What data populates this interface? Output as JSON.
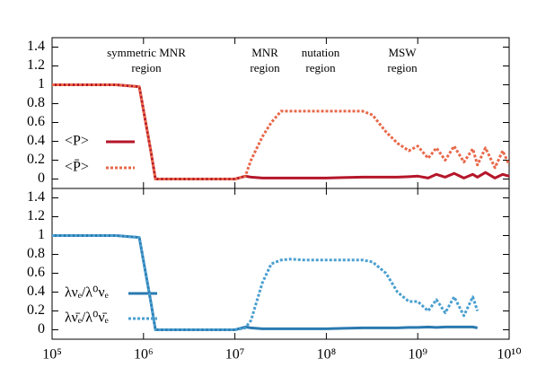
{
  "chart_data": [
    {
      "type": "line",
      "xscale": "log",
      "show_xtick_labels": false,
      "xlim": [
        100000,
        10000000000
      ],
      "ylim": [
        -0.1,
        1.5
      ],
      "xticks": [
        100000,
        1000000,
        10000000,
        100000000,
        1000000000,
        10000000000
      ],
      "yticks": [
        0,
        0.2,
        0.4,
        0.6,
        0.8,
        1,
        1.2,
        1.4
      ],
      "annotations": [
        [
          "symmetric MNR",
          "region"
        ],
        [
          "MNR",
          "region"
        ],
        [
          "nutation",
          "region"
        ],
        [
          "MSW",
          "region"
        ]
      ],
      "x": [
        100000,
        500000,
        900000,
        1200000,
        1350000,
        3000000,
        10000000,
        13000000,
        15000000,
        20000000,
        25000000,
        32000000,
        40000000,
        60000000,
        100000000,
        150000000,
        250000000,
        320000000,
        450000000,
        600000000,
        800000000,
        1000000000,
        1300000000,
        1600000000,
        2000000000,
        2500000000,
        3200000000,
        4000000000,
        4500000000,
        5500000000,
        7000000000,
        8500000000,
        10000000000
      ],
      "series": [
        {
          "name": "<P>",
          "color": "#b5162a",
          "dash": false,
          "values": [
            1,
            1,
            0.98,
            0.3,
            0,
            0,
            0,
            0.03,
            0.02,
            0.01,
            0.01,
            0.01,
            0.01,
            0.01,
            0.01,
            0.015,
            0.02,
            0.02,
            0.02,
            0.02,
            0.025,
            0.03,
            0.01,
            0.05,
            0.02,
            0.06,
            0.01,
            0.05,
            0.02,
            0.07,
            0.01,
            0.05,
            0.03
          ]
        },
        {
          "name": "<P̄>",
          "color": "#e8684a",
          "dash": true,
          "values": [
            1,
            1,
            0.98,
            0.3,
            0,
            0,
            0,
            0.03,
            0.2,
            0.45,
            0.6,
            0.72,
            0.72,
            0.72,
            0.72,
            0.72,
            0.72,
            0.68,
            0.5,
            0.38,
            0.3,
            0.35,
            0.22,
            0.33,
            0.2,
            0.35,
            0.18,
            0.32,
            0.15,
            0.33,
            0.12,
            0.3,
            0.15
          ]
        }
      ]
    },
    {
      "type": "line",
      "xscale": "log",
      "show_xtick_labels": true,
      "xlim": [
        100000,
        10000000000
      ],
      "ylim": [
        -0.1,
        1.5
      ],
      "xticks": [
        {
          "value": 100000,
          "label": "10⁵"
        },
        {
          "value": 1000000,
          "label": "10⁶"
        },
        {
          "value": 10000000,
          "label": "10⁷"
        },
        {
          "value": 100000000,
          "label": "10⁸"
        },
        {
          "value": 1000000000,
          "label": "10⁹"
        },
        {
          "value": 10000000000,
          "label": "10¹⁰"
        }
      ],
      "yticks": [
        0,
        0.2,
        0.4,
        0.6,
        0.8,
        1,
        1.2,
        1.4
      ],
      "x": [
        100000,
        500000,
        900000,
        1200000,
        1350000,
        3000000,
        10000000,
        13000000,
        15000000,
        20000000,
        25000000,
        32000000,
        40000000,
        60000000,
        100000000,
        150000000,
        250000000,
        320000000,
        450000000,
        600000000,
        800000000,
        1000000000,
        1300000000,
        1600000000,
        2000000000,
        2500000000,
        3200000000,
        4000000000,
        4500000000,
        5500000000,
        7000000000,
        8500000000,
        10000000000
      ],
      "series": [
        {
          "name": "λνₑ/λ⁰νₑ",
          "color": "#2a7ab0",
          "dash": false,
          "values": [
            1,
            1,
            0.98,
            0.3,
            0,
            0,
            0,
            0.03,
            0.02,
            0.01,
            0.01,
            0.01,
            0.01,
            0.01,
            0.01,
            0.015,
            0.02,
            0.02,
            0.02,
            0.02,
            0.025,
            0.025,
            0.03,
            0.025,
            0.03,
            0.03,
            0.03,
            0.03,
            0.02,
            null,
            null,
            null,
            null
          ]
        },
        {
          "name": "λν̄ₑ/λ⁰ν̄ₑ",
          "color": "#4a9fd0",
          "dash": true,
          "values": [
            1,
            1,
            0.98,
            0.3,
            0,
            0,
            0,
            0.02,
            0.1,
            0.5,
            0.7,
            0.74,
            0.75,
            0.74,
            0.74,
            0.74,
            0.74,
            0.72,
            0.6,
            0.4,
            0.3,
            0.3,
            0.2,
            0.32,
            0.18,
            0.35,
            0.15,
            0.35,
            0.2,
            null,
            null,
            null,
            null
          ]
        }
      ]
    }
  ]
}
